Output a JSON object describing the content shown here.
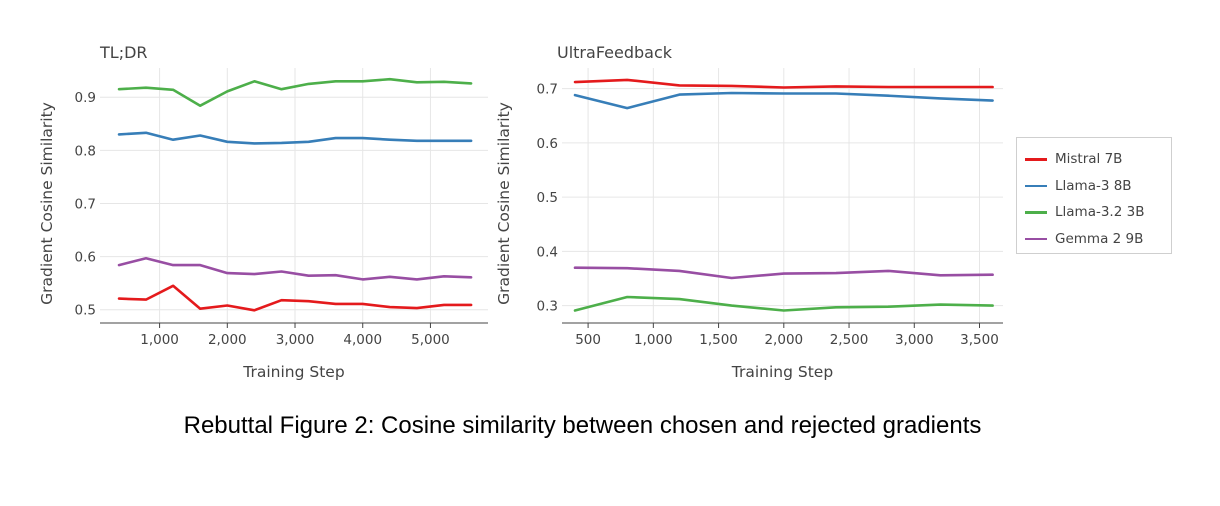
{
  "caption": "Rebuttal Figure 2: Cosine similarity between chosen and rejected gradients",
  "legend": [
    {
      "name": "Mistral 7B",
      "color": "#e41a1c"
    },
    {
      "name": "Llama-3 8B",
      "color": "#377eb8"
    },
    {
      "name": "Llama-3.2 3B",
      "color": "#4daf4a"
    },
    {
      "name": "Gemma 2 9B",
      "color": "#984ea3"
    }
  ],
  "chart_data": [
    {
      "type": "line",
      "title": "TL;DR",
      "xlabel": "Training Step",
      "ylabel": "Gradient Cosine Similarity",
      "xlim": [
        120,
        5850
      ],
      "ylim": [
        0.475,
        0.955
      ],
      "xticks": [
        1000,
        2000,
        3000,
        4000,
        5000
      ],
      "xtick_labels": [
        "1,000",
        "2,000",
        "3,000",
        "4,000",
        "5,000"
      ],
      "yticks": [
        0.5,
        0.6,
        0.7,
        0.8,
        0.9
      ],
      "ytick_labels": [
        "0.5",
        "0.6",
        "0.7",
        "0.8",
        "0.9"
      ],
      "grid": true,
      "x": [
        400,
        800,
        1200,
        1600,
        2000,
        2400,
        2800,
        3200,
        3600,
        4000,
        4400,
        4800,
        5200,
        5600
      ],
      "series": [
        {
          "name": "Mistral 7B",
          "color": "#e41a1c",
          "values": [
            0.521,
            0.519,
            0.545,
            0.502,
            0.508,
            0.499,
            0.518,
            0.516,
            0.511,
            0.511,
            0.505,
            0.503,
            0.509,
            0.509
          ]
        },
        {
          "name": "Llama-3 8B",
          "color": "#377eb8",
          "values": [
            0.83,
            0.833,
            0.82,
            0.828,
            0.816,
            0.813,
            0.814,
            0.816,
            0.823,
            0.823,
            0.82,
            0.818,
            0.818,
            0.818
          ]
        },
        {
          "name": "Llama-3.2 3B",
          "color": "#4daf4a",
          "values": [
            0.915,
            0.918,
            0.914,
            0.884,
            0.911,
            0.93,
            0.915,
            0.925,
            0.93,
            0.93,
            0.934,
            0.928,
            0.929,
            0.926
          ]
        },
        {
          "name": "Gemma 2 9B",
          "color": "#984ea3",
          "values": [
            0.584,
            0.597,
            0.584,
            0.584,
            0.569,
            0.567,
            0.572,
            0.564,
            0.565,
            0.557,
            0.562,
            0.557,
            0.563,
            0.561
          ]
        }
      ]
    },
    {
      "type": "line",
      "title": "UltraFeedback",
      "xlabel": "Training Step",
      "ylabel": "Gradient Cosine Similarity",
      "xlim": [
        300,
        3680
      ],
      "ylim": [
        0.268,
        0.738
      ],
      "xticks": [
        500,
        1000,
        1500,
        2000,
        2500,
        3000,
        3500
      ],
      "xtick_labels": [
        "500",
        "1,000",
        "1,500",
        "2,000",
        "2,500",
        "3,000",
        "3,500"
      ],
      "yticks": [
        0.3,
        0.4,
        0.5,
        0.6,
        0.7
      ],
      "ytick_labels": [
        "0.3",
        "0.4",
        "0.5",
        "0.6",
        "0.7"
      ],
      "grid": true,
      "x": [
        400,
        800,
        1200,
        1600,
        2000,
        2400,
        2800,
        3200,
        3600
      ],
      "series": [
        {
          "name": "Mistral 7B",
          "color": "#e41a1c",
          "values": [
            0.712,
            0.716,
            0.706,
            0.705,
            0.702,
            0.704,
            0.703,
            0.703,
            0.703
          ]
        },
        {
          "name": "Llama-3 8B",
          "color": "#377eb8",
          "values": [
            0.688,
            0.664,
            0.689,
            0.692,
            0.691,
            0.691,
            0.687,
            0.682,
            0.678
          ]
        },
        {
          "name": "Llama-3.2 3B",
          "color": "#4daf4a",
          "values": [
            0.291,
            0.316,
            0.312,
            0.3,
            0.291,
            0.297,
            0.298,
            0.302,
            0.3
          ]
        },
        {
          "name": "Gemma 2 9B",
          "color": "#984ea3",
          "values": [
            0.37,
            0.369,
            0.364,
            0.351,
            0.359,
            0.36,
            0.364,
            0.356,
            0.357
          ]
        }
      ]
    }
  ]
}
